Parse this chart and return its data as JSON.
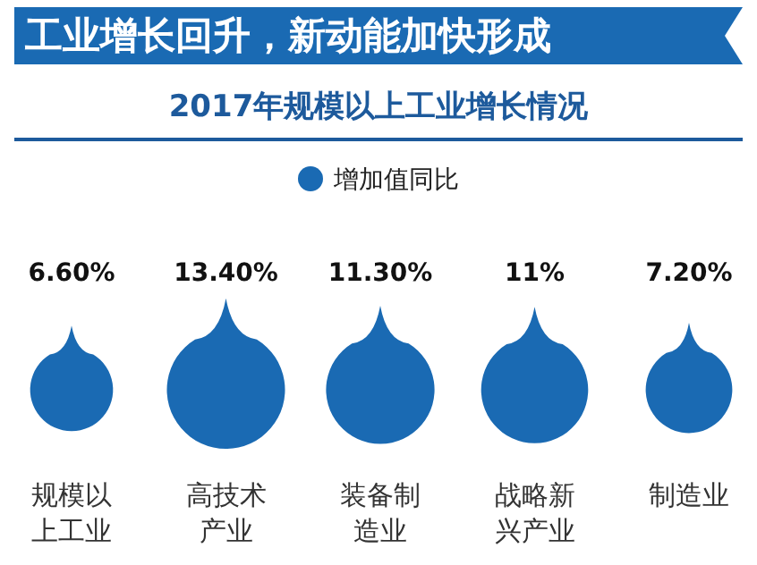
{
  "chart_data": {
    "type": "other",
    "title": "工业增长回升，新动能加快形成",
    "subtitle": "2017年规模以上工业增长情况",
    "categories": [
      "规模以上工业",
      "高技术产业",
      "装备制造业",
      "战略新兴产业",
      "制造业"
    ],
    "series": [
      {
        "name": "增加值同比",
        "color": "#1a6ab3",
        "values": [
          6.6,
          13.4,
          11.3,
          11,
          7.2
        ],
        "value_labels": [
          "6.60%",
          "13.40%",
          "11.30%",
          "11%",
          "7.20%"
        ]
      }
    ],
    "legend": "top"
  }
}
